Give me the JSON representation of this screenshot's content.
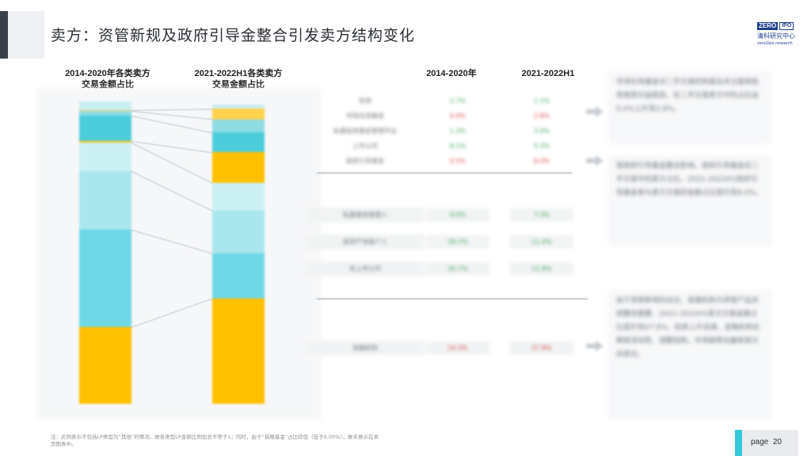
{
  "header": {
    "title": "卖方：资管新规及政府引导金整合引发卖方结构变化",
    "logo": {
      "zero": "ZERO",
      "ipo": "IPO",
      "name": "清科研究中心",
      "sub": "zero2ipo research"
    }
  },
  "columns": {
    "left_line1": "2014-2020年各类卖方",
    "left_line2": "交易金额占比",
    "right_line1": "2021-2022H1各类卖方",
    "right_line2": "交易金额占比",
    "year1": "2014-2020年",
    "year2": "2021-2022H1"
  },
  "chart_data": {
    "type": "bar",
    "categories": [
      "2014-2020年",
      "2021-2022H1"
    ],
    "stacked": true,
    "series": [
      {
        "values": [
          24.3,
          27.8
        ],
        "color": "#ffc000"
      },
      {
        "values": [
          30.7,
          11.8
        ],
        "color": "#6ed8e6"
      },
      {
        "values": [
          18.7,
          11.4
        ],
        "color": "#a9e6ee"
      },
      {
        "values": [
          9.0,
          7.3
        ],
        "color": "#ccf1f5"
      },
      {
        "values": [
          0.5,
          8.0
        ],
        "color": "#ffc000"
      },
      {
        "values": [
          8.1,
          5.3
        ],
        "color": "#4ccddc"
      },
      {
        "values": [
          1.3,
          3.4
        ],
        "color": "#8fdbe4"
      },
      {
        "values": [
          0.4,
          2.8
        ],
        "color": "#ffd24d"
      },
      {
        "values": [
          2.7,
          1.1
        ],
        "color": "#c9eef2"
      }
    ]
  },
  "table": {
    "top_rows": [
      {
        "label": "险资",
        "v1": "2.7%",
        "v2": "1.1%",
        "c1": "green",
        "c2": "green"
      },
      {
        "label": "市场化母基金",
        "v1": "0.4%",
        "v2": "2.8%",
        "c1": "red",
        "c2": "red"
      },
      {
        "label": "私募投资基金管理平台",
        "v1": "1.3%",
        "v2": "3.4%",
        "c1": "green",
        "c2": "green"
      },
      {
        "label": "上市公司",
        "v1": "8.1%",
        "v2": "5.3%",
        "c1": "green",
        "c2": "green"
      },
      {
        "label": "政府引导基金",
        "v1": "0.5%",
        "v2": "8.0%",
        "c1": "red",
        "c2": "red"
      }
    ],
    "mid_rows": [
      {
        "label": "私募基金管理人",
        "v1": "9.0%",
        "v2": "7.3%",
        "c1": "green",
        "c2": "green"
      },
      {
        "label": "高资产净值个人",
        "v1": "18.7%",
        "v2": "11.4%",
        "c1": "green",
        "c2": "green"
      },
      {
        "label": "非上市公司",
        "v1": "30.7%",
        "v2": "11.8%",
        "c1": "green",
        "c2": "green"
      }
    ],
    "bottom_rows": [
      {
        "label": "金融机构",
        "v1": "24.3%",
        "v2": "27.8%",
        "c1": "red",
        "c2": "red"
      }
    ]
  },
  "notes": {
    "n1": "市场化母基金对二手交易的热度及关注度和投资意愿日益提高，在二手交易卖方中的占比由0.4%上升至2.8%。",
    "n2": "受政府引导基金整合影响，政府引导基金在二手交易中的卖方占比，2021-2022H1政府引导基金参与卖方交易的金额占比提升至8.0%。",
    "n3": "由于资管新规的出台，金融机构为资管产品合规整改需要，2021-2022H1卖方交易金额占比提升到27.8%，较其上升迅速，金融机构在释放流动性、调整结构，市场趋势向着新规方向变化。"
  },
  "footer": {
    "footnote": "注：此例表示不包括LP类型为“其他”的情况，故各类型LP金额比例加总不等于1；同时，由于“捐赠基金”占比较低（低于0.00%），故未展示在本页图表中。",
    "page_label": "page",
    "page_number": "20"
  }
}
